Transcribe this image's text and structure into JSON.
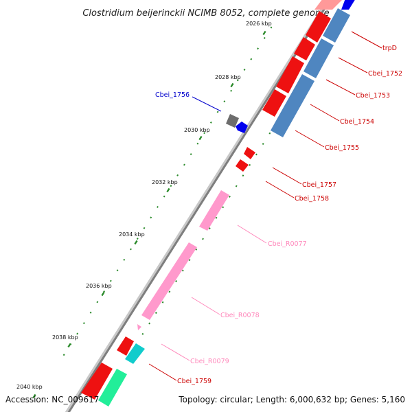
{
  "title": "Clostridium beijerinckii NCIMB 8052, complete genome",
  "footer": {
    "accession": "Accession: NC_009617",
    "summary": "Topology: circular; Length: 6,000,632 bp; Genes: 5,160"
  },
  "colors": {
    "backbone": "#9a9a9a",
    "tick_dots": "#2a8a2a",
    "cds_red": "#ee0000",
    "cds_blue": "#4f86c0",
    "cds_darkblue": "#0000ee",
    "cds_gray": "#777777",
    "rna_pink": "#ff99cc",
    "cds_cyan": "#11cccc",
    "cds_green": "#22ee99"
  },
  "kbp_labels": [
    "2026 kbp",
    "2028 kbp",
    "2030 kbp",
    "2032 kbp",
    "2034 kbp",
    "2036 kbp",
    "2038 kbp",
    "2040 kbp"
  ],
  "gene_labels": [
    {
      "name": "trpD",
      "color": "#cc0000"
    },
    {
      "name": "Cbei_1752",
      "color": "#cc0000"
    },
    {
      "name": "Cbei_1753",
      "color": "#cc0000"
    },
    {
      "name": "Cbei_1754",
      "color": "#cc0000"
    },
    {
      "name": "Cbei_1755",
      "color": "#cc0000"
    },
    {
      "name": "Cbei_1756",
      "color": "#0000cc"
    },
    {
      "name": "Cbei_1757",
      "color": "#cc0000"
    },
    {
      "name": "Cbei_1758",
      "color": "#cc0000"
    },
    {
      "name": "Cbei_R0077",
      "color": "#ff88bb"
    },
    {
      "name": "Cbei_R0078",
      "color": "#ff88bb"
    },
    {
      "name": "Cbei_R0079",
      "color": "#ff88bb"
    },
    {
      "name": "Cbei_1759",
      "color": "#cc0000"
    }
  ]
}
